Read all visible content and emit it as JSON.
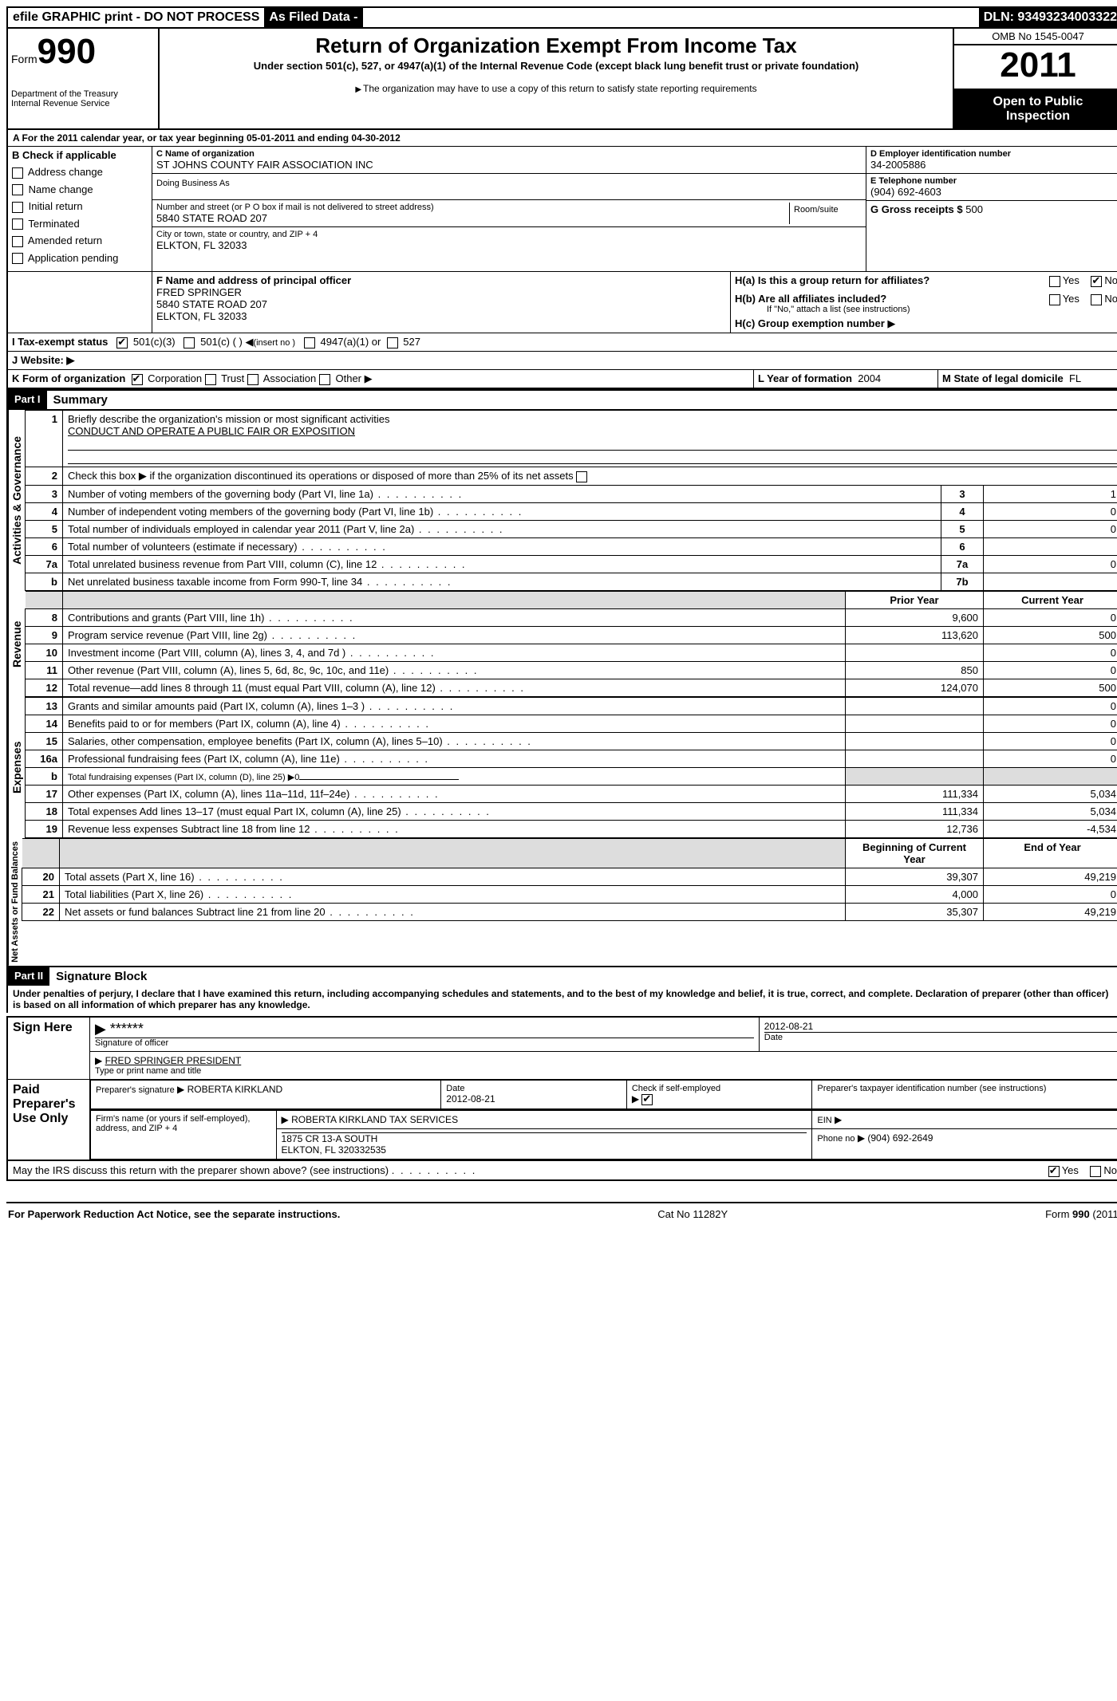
{
  "topbar": {
    "efile": "efile GRAPHIC print - DO NOT PROCESS",
    "asfiled": "As Filed Data -",
    "dln_label": "DLN:",
    "dln": "93493234003322"
  },
  "header": {
    "form_label": "Form",
    "form_no": "990",
    "dept1": "Department of the Treasury",
    "dept2": "Internal Revenue Service",
    "title": "Return of Organization Exempt From Income Tax",
    "subtitle": "Under section 501(c), 527, or 4947(a)(1) of the Internal Revenue Code (except black lung benefit trust or private foundation)",
    "note": "The organization may have to use a copy of this return to satisfy state reporting requirements",
    "omb": "OMB No 1545-0047",
    "year": "2011",
    "inspect1": "Open to Public",
    "inspect2": "Inspection"
  },
  "a": {
    "line": "A  For the 2011 calendar year, or tax year beginning 05-01-2011    and ending 04-30-2012",
    "b_label": "B  Check if applicable",
    "b_items": [
      "Address change",
      "Name change",
      "Initial return",
      "Terminated",
      "Amended return",
      "Application pending"
    ],
    "c_label": "C Name of organization",
    "c_name": "ST JOHNS COUNTY FAIR ASSOCIATION INC",
    "dba_label": "Doing Business As",
    "addr_label": "Number and street (or P O  box if mail is not delivered to street address)",
    "room_label": "Room/suite",
    "addr": "5840 STATE ROAD 207",
    "city_label": "City or town, state or country, and ZIP + 4",
    "city": "ELKTON, FL  32033",
    "d_label": "D Employer identification number",
    "d_val": "34-2005886",
    "e_label": "E Telephone number",
    "e_val": "(904) 692-4603",
    "g_label": "G Gross receipts $",
    "g_val": "500",
    "f_label": "F   Name and address of principal officer",
    "f_name": "FRED SPRINGER",
    "f_addr1": "5840 STATE ROAD 207",
    "f_addr2": "ELKTON, FL  32033",
    "ha_label": "H(a)  Is this a group return for affiliates?",
    "hb_label": "H(b)  Are all affiliates included?",
    "hb_note": "If \"No,\" attach a list  (see instructions)",
    "hc_label": "H(c)   Group exemption number",
    "yes": "Yes",
    "no": "No",
    "i_label": "I   Tax-exempt status",
    "i_501c3": "501(c)(3)",
    "i_501c": "501(c) (   )",
    "i_insert": "(insert no )",
    "i_4947": "4947(a)(1) or",
    "i_527": "527",
    "j_label": "J  Website:",
    "k_label": "K Form of organization",
    "k_corp": "Corporation",
    "k_trust": "Trust",
    "k_assoc": "Association",
    "k_other": "Other",
    "l_label": "L Year of formation",
    "l_val": "2004",
    "m_label": "M State of legal domicile",
    "m_val": "FL"
  },
  "part1": {
    "label": "Part I",
    "title": "Summary",
    "vlabel_ag": "Activities & Governance",
    "vlabel_rev": "Revenue",
    "vlabel_exp": "Expenses",
    "vlabel_net": "Net Assets or Fund Balances",
    "l1": "Briefly describe the organization's mission or most significant activities",
    "l1_val": "CONDUCT AND OPERATE A PUBLIC FAIR OR EXPOSITION",
    "l2": "Check this box ▶     if the organization discontinued its operations or disposed of more than 25% of its net assets",
    "rows_ag": [
      {
        "n": "3",
        "t": "Number of voting members of the governing body (Part VI, line 1a)",
        "ln": "3",
        "v": "1"
      },
      {
        "n": "4",
        "t": "Number of independent voting members of the governing body (Part VI, line 1b)",
        "ln": "4",
        "v": "0"
      },
      {
        "n": "5",
        "t": "Total number of individuals employed in calendar year 2011 (Part V, line 2a)",
        "ln": "5",
        "v": "0"
      },
      {
        "n": "6",
        "t": "Total number of volunteers (estimate if necessary)",
        "ln": "6",
        "v": ""
      },
      {
        "n": "7a",
        "t": "Total unrelated business revenue from Part VIII, column (C), line 12",
        "ln": "7a",
        "v": "0"
      },
      {
        "n": "b",
        "t": "Net unrelated business taxable income from Form 990-T, line 34",
        "ln": "7b",
        "v": ""
      }
    ],
    "hdr_prior": "Prior Year",
    "hdr_current": "Current Year",
    "rows_rev": [
      {
        "n": "8",
        "t": "Contributions and grants (Part VIII, line 1h)",
        "p": "9,600",
        "c": "0"
      },
      {
        "n": "9",
        "t": "Program service revenue (Part VIII, line 2g)",
        "p": "113,620",
        "c": "500"
      },
      {
        "n": "10",
        "t": "Investment income (Part VIII, column (A), lines 3, 4, and 7d )",
        "p": "",
        "c": "0"
      },
      {
        "n": "11",
        "t": "Other revenue (Part VIII, column (A), lines 5, 6d, 8c, 9c, 10c, and 11e)",
        "p": "850",
        "c": "0"
      },
      {
        "n": "12",
        "t": "Total revenue—add lines 8 through 11 (must equal Part VIII, column (A), line 12)",
        "p": "124,070",
        "c": "500"
      }
    ],
    "rows_exp": [
      {
        "n": "13",
        "t": "Grants and similar amounts paid (Part IX, column (A), lines 1–3 )",
        "p": "",
        "c": "0"
      },
      {
        "n": "14",
        "t": "Benefits paid to or for members (Part IX, column (A), line 4)",
        "p": "",
        "c": "0"
      },
      {
        "n": "15",
        "t": "Salaries, other compensation, employee benefits (Part IX, column (A), lines 5–10)",
        "p": "",
        "c": "0"
      },
      {
        "n": "16a",
        "t": "Professional fundraising fees (Part IX, column (A), line 11e)",
        "p": "",
        "c": "0"
      },
      {
        "n": "b",
        "t": "Total fundraising expenses (Part IX, column (D), line 25) ▶0",
        "p": "shade",
        "c": "shade"
      },
      {
        "n": "17",
        "t": "Other expenses (Part IX, column (A), lines 11a–11d, 11f–24e)",
        "p": "111,334",
        "c": "5,034"
      },
      {
        "n": "18",
        "t": "Total expenses  Add lines 13–17 (must equal Part IX, column (A), line 25)",
        "p": "111,334",
        "c": "5,034"
      },
      {
        "n": "19",
        "t": "Revenue less expenses  Subtract line 18 from line 12",
        "p": "12,736",
        "c": "-4,534"
      }
    ],
    "hdr_begin": "Beginning of Current Year",
    "hdr_end": "End of Year",
    "rows_net": [
      {
        "n": "20",
        "t": "Total assets (Part X, line 16)",
        "p": "39,307",
        "c": "49,219"
      },
      {
        "n": "21",
        "t": "Total liabilities (Part X, line 26)",
        "p": "4,000",
        "c": "0"
      },
      {
        "n": "22",
        "t": "Net assets or fund balances  Subtract line 21 from line 20",
        "p": "35,307",
        "c": "49,219"
      }
    ]
  },
  "part2": {
    "label": "Part II",
    "title": "Signature Block",
    "penalty": "Under penalties of perjury, I declare that I have examined this return, including accompanying schedules and statements, and to the best of my knowledge and belief, it is true, correct, and complete. Declaration of preparer (other than officer) is based on all information of which preparer has any knowledge.",
    "sign_here": "Sign Here",
    "sig_mask": "******",
    "sig_date": "2012-08-21",
    "sig_officer_label": "Signature of officer",
    "date_label": "Date",
    "officer_name": "FRED SPRINGER PRESIDENT",
    "officer_label": "Type or print name and title",
    "paid": "Paid Preparer's Use Only",
    "prep_sig_label": "Preparer's signature",
    "prep_name": "ROBERTA KIRKLAND",
    "prep_date": "2012-08-21",
    "self_label": "Check if self-employed",
    "ptin_label": "Preparer's taxpayer identification number (see instructions)",
    "firm_label": "Firm's name (or yours if self-employed), address, and ZIP + 4",
    "firm_name": "ROBERTA KIRKLAND TAX SERVICES",
    "firm_addr1": "1875 CR 13-A SOUTH",
    "firm_addr2": "ELKTON, FL  320332535",
    "ein_label": "EIN",
    "phone_label": "Phone no",
    "phone": "(904) 692-2649",
    "discuss": "May the IRS discuss this return with the preparer shown above? (see instructions)",
    "yes": "Yes",
    "no": "No"
  },
  "footer": {
    "left": "For Paperwork Reduction Act Notice, see the separate instructions.",
    "mid": "Cat No  11282Y",
    "right": "Form 990 (2011)"
  }
}
